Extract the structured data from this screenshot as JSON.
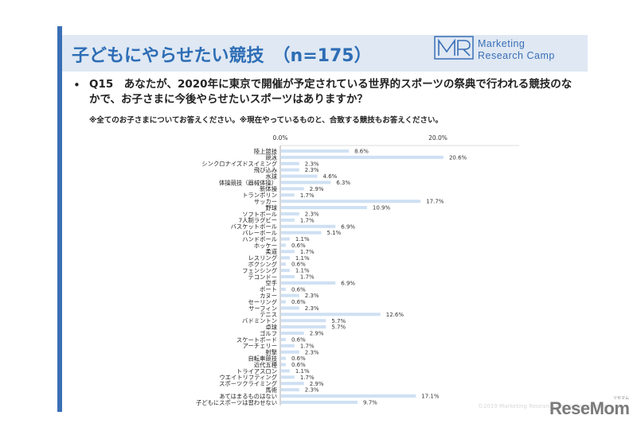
{
  "title": "子どもにやらせたい競技　（n=175）",
  "logo": {
    "icon": "mr-logo-icon",
    "line1": "Marketing",
    "line2": "Research Camp"
  },
  "question": "Q15　あなたが、2020年に東京で開催が予定されている世界的スポーツの祭典で行われる競技のなかで、お子さまに今後やらせたいスポーツはありますか？",
  "note": "※全てのお子さまについてお答えください。※現在やっているものと、合致する競技もお答えください。",
  "footer": "©2019 Marketing Research Camp Corporation",
  "brand": {
    "name": "ReseMom",
    "ruby": "リセマム"
  },
  "colors": {
    "accent": "#3a6fb6",
    "bar": "#cfe0f3",
    "title_band": "#dfe8f3"
  },
  "chart_data": {
    "type": "bar",
    "orientation": "horizontal",
    "title": "",
    "xlabel": "",
    "ylabel": "",
    "xlim": [
      0,
      27.5
    ],
    "ticks": [
      0,
      20
    ],
    "tick_labels": [
      "0.0%",
      "20.0%"
    ],
    "grid": false,
    "legend": "none",
    "categories": [
      "陸上競技",
      "競泳",
      "シンクロナイズドスイミング",
      "飛び込み",
      "水球",
      "体操競技（器械体操）",
      "新体操",
      "トランポリン",
      "サッカー",
      "野球",
      "ソフトボール",
      "7人制ラグビー",
      "バスケットボール",
      "バレーボール",
      "ハンドボール",
      "ホッケー",
      "柔道",
      "レスリング",
      "ボクシング",
      "フェンシング",
      "テコンドー",
      "空手",
      "ボート",
      "カヌー",
      "セーリング",
      "サーフィン",
      "テニス",
      "バドミントン",
      "卓球",
      "ゴルフ",
      "スケートボード",
      "アーチェリー",
      "射撃",
      "自転車競技",
      "近代五種",
      "トライアスロン",
      "ウエイトリフティング",
      "スポーツクライミング",
      "馬術",
      "あてはまるものはない",
      "子どもにスポーツは習わせない"
    ],
    "values": [
      8.6,
      20.6,
      2.3,
      2.3,
      4.6,
      6.3,
      2.9,
      1.7,
      17.7,
      10.9,
      2.3,
      1.7,
      6.9,
      5.1,
      1.1,
      0.6,
      1.7,
      1.1,
      0.6,
      1.1,
      1.7,
      6.9,
      0.6,
      2.3,
      0.6,
      2.3,
      12.6,
      5.7,
      5.7,
      2.9,
      0.6,
      1.7,
      2.3,
      0.6,
      0.6,
      1.1,
      1.7,
      2.9,
      2.3,
      17.1,
      9.7
    ],
    "value_labels": [
      "8.6%",
      "20.6%",
      "2.3%",
      "2.3%",
      "4.6%",
      "6.3%",
      "2.9%",
      "1.7%",
      "17.7%",
      "10.9%",
      "2.3%",
      "1.7%",
      "6.9%",
      "5.1%",
      "1.1%",
      "0.6%",
      "1.7%",
      "1.1%",
      "0.6%",
      "1.1%",
      "1.7%",
      "6.9%",
      "0.6%",
      "2.3%",
      "0.6%",
      "2.3%",
      "12.6%",
      "5.7%",
      "5.7%",
      "2.9%",
      "0.6%",
      "1.7%",
      "2.3%",
      "0.6%",
      "0.6%",
      "1.1%",
      "1.7%",
      "2.9%",
      "2.3%",
      "17.1%",
      "9.7%"
    ]
  }
}
